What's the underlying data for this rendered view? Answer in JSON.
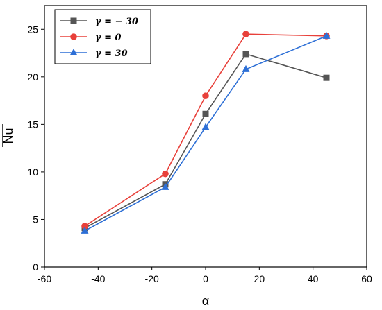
{
  "chart_data": {
    "type": "line",
    "xlabel": "α",
    "ylabel": "Nu",
    "xlim": [
      -60,
      60
    ],
    "ylim": [
      0,
      27.5
    ],
    "xticks": [
      "-60",
      "-40",
      "-20",
      "0",
      "20",
      "40",
      "60"
    ],
    "yticks": [
      "0",
      "5",
      "10",
      "15",
      "20",
      "25"
    ],
    "x": [
      -45,
      -15,
      0,
      15,
      45
    ],
    "legend_position": "top-left",
    "grid": false,
    "series": [
      {
        "name": "γ = − 30",
        "color": "#555555",
        "marker": "square",
        "values": [
          4.1,
          8.7,
          16.1,
          22.4,
          19.9
        ]
      },
      {
        "name": "γ = 0",
        "color": "#e8403a",
        "marker": "circle",
        "values": [
          4.3,
          9.8,
          18.0,
          24.5,
          24.3
        ]
      },
      {
        "name": "γ = 30",
        "color": "#2d6fd6",
        "marker": "triangle",
        "values": [
          3.8,
          8.4,
          14.7,
          20.8,
          24.3
        ]
      }
    ]
  }
}
